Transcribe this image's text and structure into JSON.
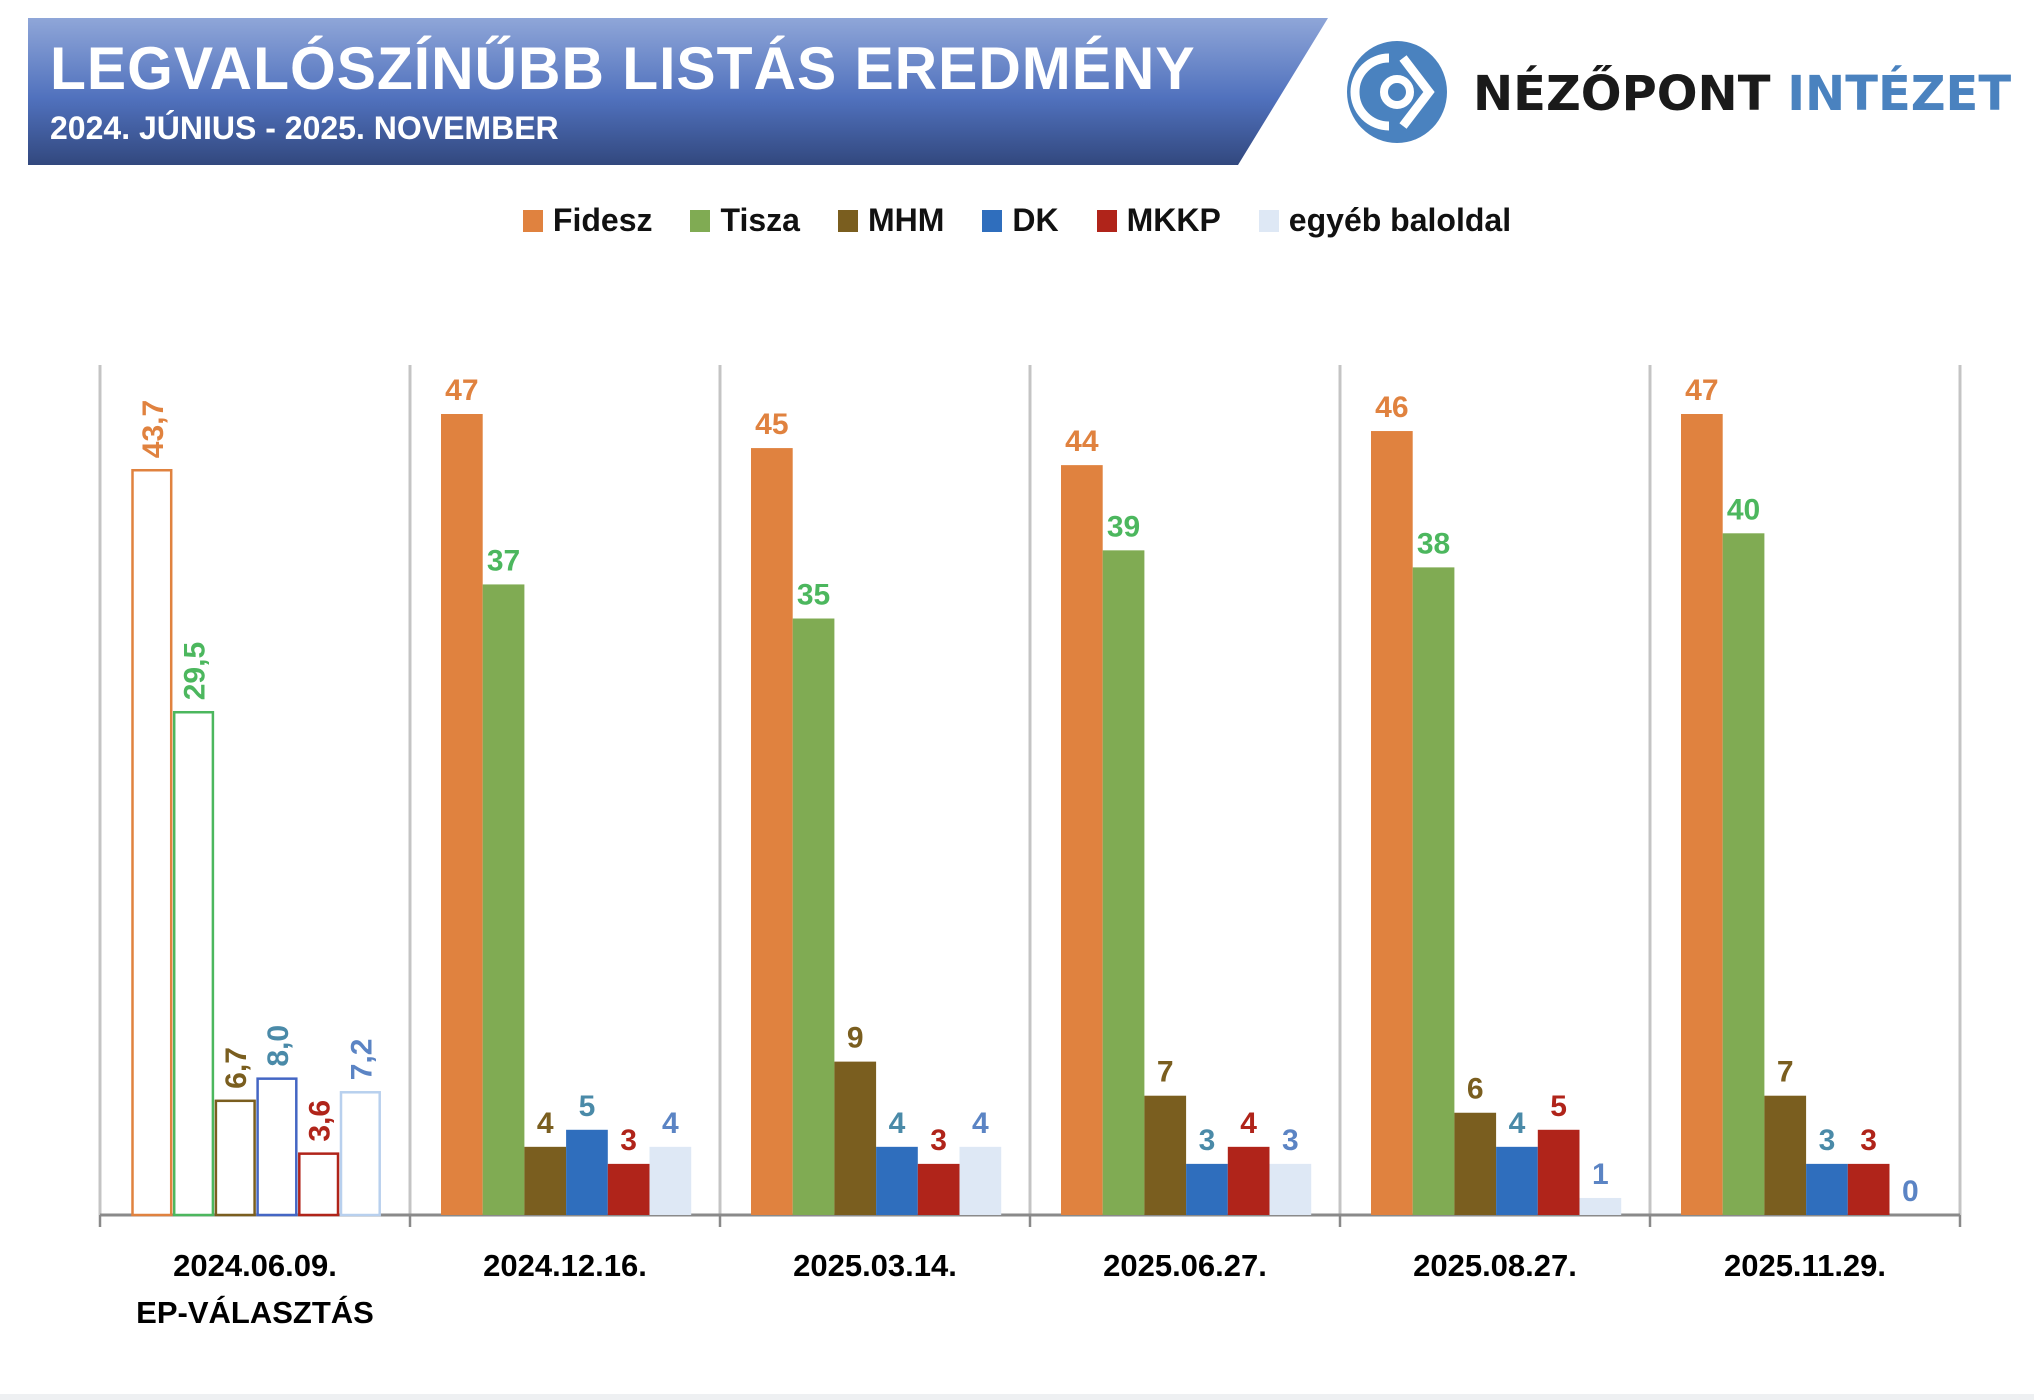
{
  "header": {
    "title": "LEGVALÓSZÍNŰBB LISTÁS EREDMÉNY",
    "subtitle": "2024. JÚNIUS - 2025. NOVEMBER",
    "banner_color_top": "#8fa6d8",
    "banner_color_bottom": "#32487e"
  },
  "logo": {
    "icon": "nezopont-eye-logo-icon",
    "name_dark": "NÉZŐPONT",
    "name_blue": "INTÉZET",
    "color": "#4a82bf"
  },
  "chart_data": {
    "type": "bar",
    "title": "LEGVALÓSZÍNŰBB LISTÁS EREDMÉNY",
    "subtitle": "2024. JÚNIUS - 2025. NOVEMBER",
    "xlabel": "",
    "ylabel": "",
    "ylim": [
      0,
      47
    ],
    "grid": false,
    "legend_position": "top",
    "categories": [
      [
        "2024.06.09.",
        "EP-VÁLASZTÁS"
      ],
      [
        "2024.12.16."
      ],
      [
        "2025.03.14."
      ],
      [
        "2025.06.27."
      ],
      [
        "2025.08.27."
      ],
      [
        "2025.11.29."
      ]
    ],
    "outlined_categories": [
      0
    ],
    "series": [
      {
        "name": "Fidesz",
        "color": "#e0823f",
        "label_color": "#e0823f",
        "values": [
          43.7,
          47,
          45,
          44,
          46,
          47
        ],
        "labels": [
          "43,7",
          "47",
          "45",
          "44",
          "46",
          "47"
        ]
      },
      {
        "name": "Tisza",
        "color": "#80ab53",
        "label_color": "#4cb75e",
        "values": [
          29.5,
          37,
          35,
          39,
          38,
          40
        ],
        "labels": [
          "29,5",
          "37",
          "35",
          "39",
          "38",
          "40"
        ]
      },
      {
        "name": "MHM",
        "color": "#7a5e1f",
        "label_color": "#7a5e1f",
        "values": [
          6.7,
          4,
          9,
          7,
          6,
          7
        ],
        "labels": [
          "6,7",
          "4",
          "9",
          "7",
          "6",
          "7"
        ]
      },
      {
        "name": "DK",
        "color": "#2f6ebd",
        "label_color": "#4a8aa8",
        "outline_color": "#4466c4",
        "values": [
          8.0,
          5,
          4,
          3,
          4,
          3
        ],
        "labels": [
          "8,0",
          "5",
          "4",
          "3",
          "4",
          "3"
        ]
      },
      {
        "name": "MKKP",
        "color": "#b0241a",
        "label_color": "#b0241a",
        "values": [
          3.6,
          3,
          3,
          4,
          5,
          3
        ],
        "labels": [
          "3,6",
          "3",
          "3",
          "4",
          "5",
          "3"
        ]
      },
      {
        "name": "egyéb baloldal",
        "color": "#dee8f5",
        "label_color": "#5b84c4",
        "outline_color": "#b8d0ee",
        "values": [
          7.2,
          4,
          4,
          3,
          1,
          0
        ],
        "labels": [
          "7,2",
          "4",
          "4",
          "3",
          "1",
          "0"
        ]
      }
    ]
  }
}
